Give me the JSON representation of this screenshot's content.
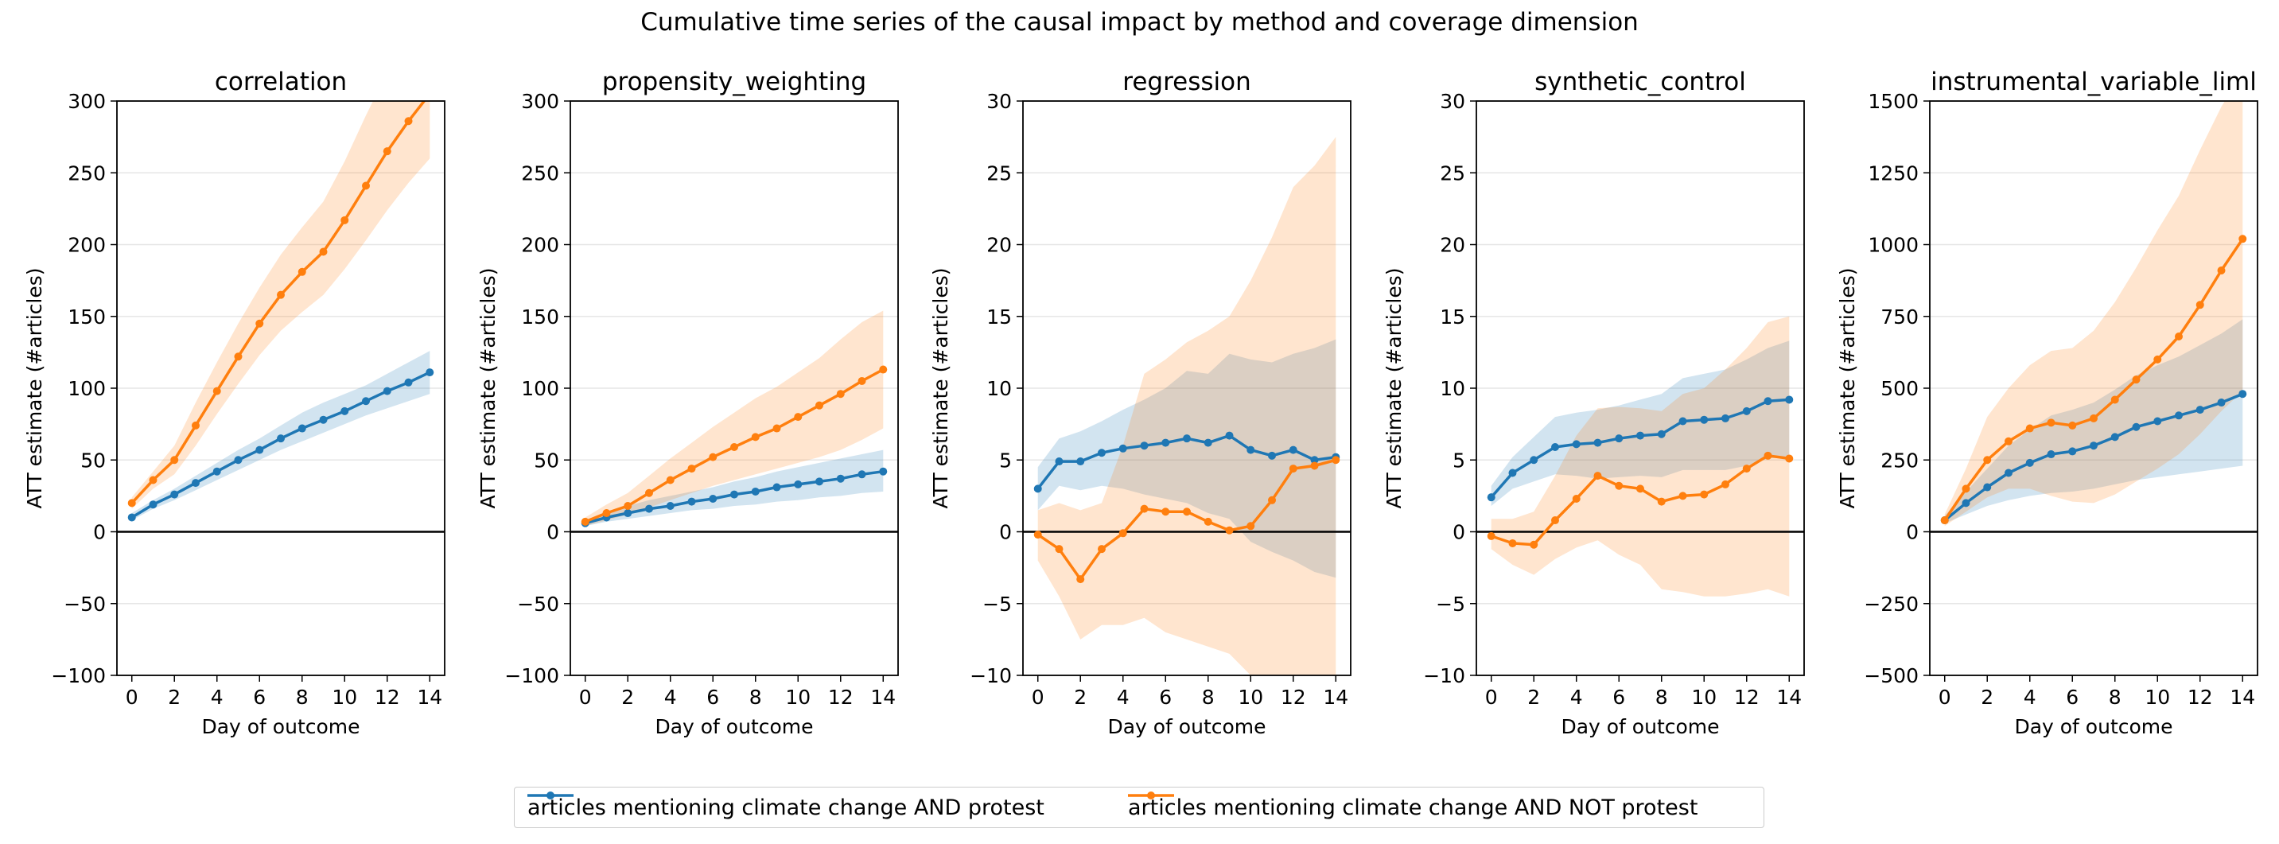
{
  "figure_title": "Cumulative time series of the causal impact by method and coverage dimension",
  "colors": {
    "series_protest": "#1f77b4",
    "series_not_protest": "#ff7f0e",
    "band_protest": "#1f77b4",
    "band_not_protest": "#ff7f0e",
    "zero_line": "#000000",
    "grid": "#e6e6e6"
  },
  "legend": {
    "items": [
      {
        "label": "articles mentioning climate change AND protest"
      },
      {
        "label": "articles mentioning climate change AND NOT protest"
      }
    ]
  },
  "chart_data": [
    {
      "type": "line",
      "title": "correlation",
      "xlabel": "Day of outcome",
      "ylabel": "ATT estimate (#articles)",
      "xlim": [
        -0.7,
        14.7
      ],
      "ylim": [
        -100,
        300
      ],
      "xticks": [
        0,
        2,
        4,
        6,
        8,
        10,
        12,
        14
      ],
      "yticks": [
        -100,
        -50,
        0,
        50,
        100,
        150,
        200,
        250,
        300
      ],
      "ytick_labels": [
        "−100",
        "−50",
        "0",
        "50",
        "100",
        "150",
        "200",
        "250",
        "300"
      ],
      "grid": "horizontal",
      "x": [
        0,
        1,
        2,
        3,
        4,
        5,
        6,
        7,
        8,
        9,
        10,
        11,
        12,
        13,
        14
      ],
      "series": [
        {
          "name": "articles mentioning climate change AND protest",
          "values": [
            10,
            19,
            26,
            34,
            42,
            50,
            57,
            65,
            72,
            78,
            84,
            91,
            98,
            104,
            111
          ],
          "lower": [
            8,
            16,
            22,
            29,
            36,
            43,
            50,
            57,
            63,
            69,
            75,
            81,
            86,
            91,
            96
          ],
          "upper": [
            13,
            22,
            30,
            39,
            48,
            57,
            65,
            74,
            83,
            90,
            96,
            102,
            110,
            118,
            126
          ]
        },
        {
          "name": "articles mentioning climate change AND NOT protest",
          "values": [
            20,
            36,
            50,
            74,
            98,
            122,
            145,
            165,
            181,
            195,
            217,
            241,
            265,
            286,
            305
          ],
          "lower": [
            16,
            30,
            40,
            60,
            82,
            103,
            123,
            140,
            153,
            165,
            183,
            203,
            224,
            243,
            260
          ],
          "upper": [
            24,
            42,
            60,
            90,
            118,
            145,
            170,
            193,
            212,
            230,
            258,
            290,
            320,
            330,
            340
          ]
        }
      ]
    },
    {
      "type": "line",
      "title": "propensity_weighting",
      "xlabel": "Day of outcome",
      "ylabel": "ATT estimate (#articles)",
      "xlim": [
        -0.7,
        14.7
      ],
      "ylim": [
        -100,
        300
      ],
      "xticks": [
        0,
        2,
        4,
        6,
        8,
        10,
        12,
        14
      ],
      "yticks": [
        -100,
        -50,
        0,
        50,
        100,
        150,
        200,
        250,
        300
      ],
      "ytick_labels": [
        "−100",
        "−50",
        "0",
        "50",
        "100",
        "150",
        "200",
        "250",
        "300"
      ],
      "grid": "horizontal",
      "x": [
        0,
        1,
        2,
        3,
        4,
        5,
        6,
        7,
        8,
        9,
        10,
        11,
        12,
        13,
        14
      ],
      "series": [
        {
          "name": "articles mentioning climate change AND protest",
          "values": [
            6,
            10,
            13,
            16,
            18,
            21,
            23,
            26,
            28,
            31,
            33,
            35,
            37,
            40,
            42
          ],
          "lower": [
            4,
            7,
            9,
            11,
            13,
            15,
            16,
            18,
            19,
            21,
            22,
            24,
            25,
            27,
            28
          ],
          "upper": [
            8,
            14,
            18,
            22,
            25,
            28,
            31,
            35,
            38,
            42,
            45,
            48,
            51,
            54,
            57
          ]
        },
        {
          "name": "articles mentioning climate change AND NOT protest",
          "values": [
            7,
            13,
            18,
            27,
            36,
            44,
            52,
            59,
            66,
            72,
            80,
            88,
            96,
            105,
            113
          ],
          "lower": [
            4,
            8,
            12,
            17,
            22,
            27,
            32,
            36,
            40,
            44,
            48,
            52,
            57,
            64,
            72
          ],
          "upper": [
            10,
            19,
            27,
            39,
            51,
            62,
            73,
            83,
            93,
            101,
            111,
            121,
            134,
            146,
            154
          ]
        }
      ]
    },
    {
      "type": "line",
      "title": "regression",
      "xlabel": "Day of outcome",
      "ylabel": "ATT estimate (#articles)",
      "xlim": [
        -0.7,
        14.7
      ],
      "ylim": [
        -10,
        30
      ],
      "xticks": [
        0,
        2,
        4,
        6,
        8,
        10,
        12,
        14
      ],
      "yticks": [
        -10,
        -5,
        0,
        5,
        10,
        15,
        20,
        25,
        30
      ],
      "ytick_labels": [
        "−10",
        "−5",
        "0",
        "5",
        "10",
        "15",
        "20",
        "25",
        "30"
      ],
      "grid": "horizontal",
      "x": [
        0,
        1,
        2,
        3,
        4,
        5,
        6,
        7,
        8,
        9,
        10,
        11,
        12,
        13,
        14
      ],
      "series": [
        {
          "name": "articles mentioning climate change AND protest",
          "values": [
            3.0,
            4.9,
            4.9,
            5.5,
            5.8,
            6.0,
            6.2,
            6.5,
            6.2,
            6.7,
            5.7,
            5.3,
            5.7,
            5.0,
            5.2
          ],
          "lower": [
            1.5,
            3.2,
            2.9,
            3.2,
            3.0,
            2.6,
            2.3,
            2.0,
            1.3,
            0.9,
            -0.7,
            -1.4,
            -2.0,
            -2.8,
            -3.2
          ],
          "upper": [
            4.5,
            6.5,
            7.0,
            7.7,
            8.5,
            9.2,
            10.0,
            11.2,
            11.0,
            12.4,
            12.0,
            11.8,
            12.4,
            12.8,
            13.4
          ]
        },
        {
          "name": "articles mentioning climate change AND NOT protest",
          "values": [
            -0.2,
            -1.2,
            -3.3,
            -1.2,
            -0.1,
            1.6,
            1.4,
            1.4,
            0.7,
            0.1,
            0.4,
            2.2,
            4.4,
            4.6,
            5.0
          ],
          "lower": [
            -2.0,
            -4.5,
            -7.5,
            -6.5,
            -6.5,
            -6.0,
            -7.0,
            -7.5,
            -8.0,
            -8.5,
            -10.0,
            -10.5,
            -10.5,
            -10.5,
            -10.5
          ],
          "upper": [
            1.5,
            2.0,
            1.5,
            2.0,
            6.0,
            11.0,
            12.0,
            13.2,
            14.0,
            15.0,
            17.5,
            20.5,
            24.0,
            25.5,
            27.5
          ]
        }
      ]
    },
    {
      "type": "line",
      "title": "synthetic_control",
      "xlabel": "Day of outcome",
      "ylabel": "ATT estimate (#articles)",
      "xlim": [
        -0.7,
        14.7
      ],
      "ylim": [
        -10,
        30
      ],
      "xticks": [
        0,
        2,
        4,
        6,
        8,
        10,
        12,
        14
      ],
      "yticks": [
        -10,
        -5,
        0,
        5,
        10,
        15,
        20,
        25,
        30
      ],
      "ytick_labels": [
        "−10",
        "−5",
        "0",
        "5",
        "10",
        "15",
        "20",
        "25",
        "30"
      ],
      "grid": "horizontal",
      "x": [
        0,
        1,
        2,
        3,
        4,
        5,
        6,
        7,
        8,
        9,
        10,
        11,
        12,
        13,
        14
      ],
      "series": [
        {
          "name": "articles mentioning climate change AND protest",
          "values": [
            2.4,
            4.1,
            5.0,
            5.9,
            6.1,
            6.2,
            6.5,
            6.7,
            6.8,
            7.7,
            7.8,
            7.9,
            8.4,
            9.1,
            9.2
          ],
          "lower": [
            1.8,
            3.0,
            3.5,
            4.0,
            3.9,
            3.7,
            3.8,
            3.9,
            3.8,
            4.3,
            4.3,
            4.3,
            4.6,
            5.1,
            5.2
          ],
          "upper": [
            3.2,
            5.2,
            6.6,
            8.0,
            8.3,
            8.5,
            8.8,
            9.2,
            9.6,
            10.7,
            11.0,
            11.3,
            12.0,
            12.8,
            13.3
          ]
        },
        {
          "name": "articles mentioning climate change AND NOT protest",
          "values": [
            -0.3,
            -0.8,
            -0.9,
            0.8,
            2.3,
            3.9,
            3.2,
            3.0,
            2.1,
            2.5,
            2.6,
            3.3,
            4.4,
            5.3,
            5.1
          ],
          "lower": [
            -1.2,
            -2.3,
            -3.0,
            -1.9,
            -1.1,
            -0.6,
            -1.6,
            -2.3,
            -4.0,
            -4.2,
            -4.5,
            -4.5,
            -4.3,
            -4.0,
            -4.5
          ],
          "upper": [
            0.9,
            0.9,
            1.4,
            3.9,
            6.7,
            8.6,
            8.7,
            8.6,
            8.4,
            9.6,
            10.0,
            11.3,
            12.8,
            14.6,
            15.0
          ]
        }
      ]
    },
    {
      "type": "line",
      "title": "instrumental_variable_liml",
      "xlabel": "Day of outcome",
      "ylabel": "ATT estimate (#articles)",
      "xlim": [
        -0.7,
        14.7
      ],
      "ylim": [
        -500,
        1500
      ],
      "xticks": [
        0,
        2,
        4,
        6,
        8,
        10,
        12,
        14
      ],
      "yticks": [
        -500,
        -250,
        0,
        250,
        500,
        750,
        1000,
        1250,
        1500
      ],
      "ytick_labels": [
        "−500",
        "−250",
        "0",
        "250",
        "500",
        "750",
        "1000",
        "1250",
        "1500"
      ],
      "grid": "horizontal",
      "x": [
        0,
        1,
        2,
        3,
        4,
        5,
        6,
        7,
        8,
        9,
        10,
        11,
        12,
        13,
        14
      ],
      "series": [
        {
          "name": "articles mentioning climate change AND protest",
          "values": [
            40,
            100,
            155,
            205,
            240,
            270,
            280,
            300,
            330,
            365,
            385,
            405,
            425,
            450,
            480
          ],
          "lower": [
            30,
            60,
            90,
            110,
            125,
            135,
            140,
            150,
            165,
            180,
            190,
            200,
            210,
            220,
            230
          ],
          "upper": [
            55,
            140,
            220,
            300,
            355,
            405,
            425,
            450,
            495,
            545,
            580,
            610,
            650,
            690,
            740
          ]
        },
        {
          "name": "articles mentioning climate change AND NOT protest",
          "values": [
            40,
            150,
            250,
            315,
            360,
            380,
            370,
            395,
            460,
            530,
            600,
            680,
            790,
            910,
            1020
          ],
          "lower": [
            20,
            70,
            120,
            150,
            150,
            125,
            105,
            100,
            130,
            175,
            220,
            270,
            340,
            420,
            490
          ],
          "upper": [
            60,
            220,
            400,
            500,
            580,
            630,
            640,
            700,
            800,
            920,
            1050,
            1170,
            1330,
            1480,
            1600
          ]
        }
      ]
    }
  ]
}
